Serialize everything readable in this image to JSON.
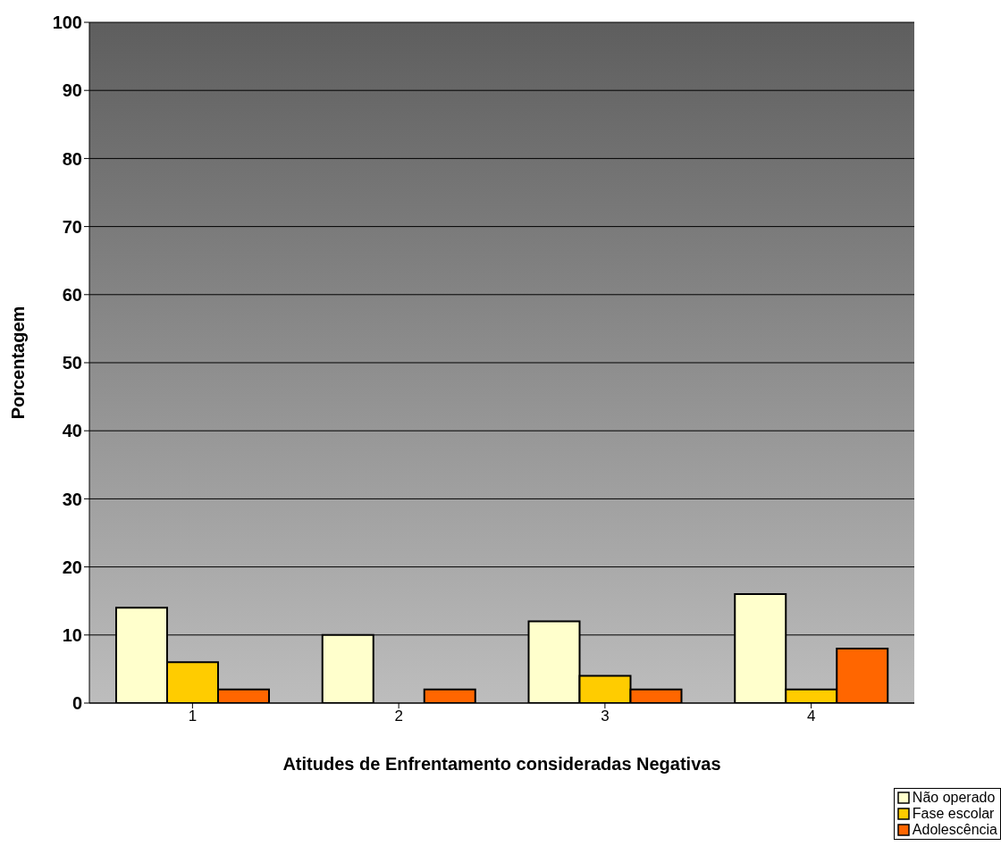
{
  "chart_data": {
    "type": "bar",
    "xlabel": "Atitudes de Enfrentamento consideradas Negativas",
    "ylabel": "Porcentagem",
    "categories": [
      "1",
      "2",
      "3",
      "4"
    ],
    "series": [
      {
        "name": "Não operado",
        "color": "#ffffcc",
        "values": [
          14,
          10,
          12,
          16
        ]
      },
      {
        "name": "Fase escolar",
        "color": "#ffcc00",
        "values": [
          6,
          0,
          4,
          2
        ]
      },
      {
        "name": "Adolescência",
        "color": "#ff6600",
        "values": [
          2,
          2,
          2,
          8
        ]
      }
    ],
    "ylim": [
      0,
      100
    ],
    "yticks": [
      0,
      10,
      20,
      30,
      40,
      50,
      60,
      70,
      80,
      90,
      100
    ],
    "grid": "y",
    "legend": "bottom right"
  }
}
